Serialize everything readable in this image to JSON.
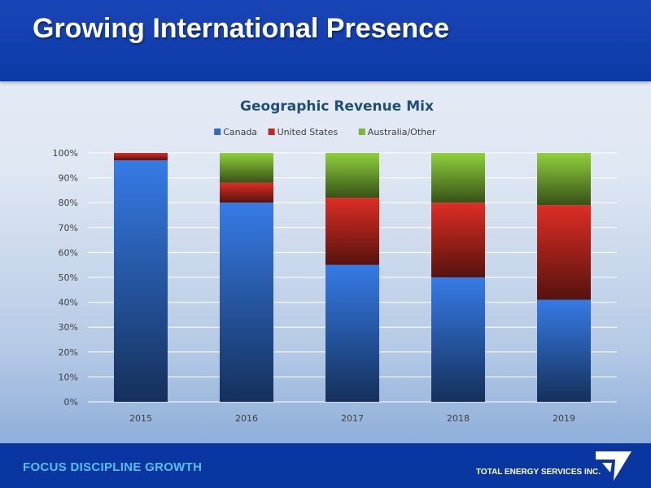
{
  "header": {
    "title": "Growing International Presence"
  },
  "footer": {
    "tagline": "FOCUS  DISCIPLINE  GROWTH",
    "company": "TOTAL ENERGY SERVICES INC.",
    "logo_icon": "total-energy-logo-icon"
  },
  "colors": {
    "header_blue": "#0b3aa6",
    "canada": "#2f6bc8",
    "united_states": "#c0281f",
    "australia_other": "#7db534",
    "tagline": "#4fc3f7"
  },
  "chart_data": {
    "type": "bar",
    "stacked": true,
    "percent": true,
    "title": "Geographic Revenue Mix",
    "xlabel": "",
    "ylabel": "",
    "ylim": [
      0,
      100
    ],
    "yticks": [
      "0%",
      "10%",
      "20%",
      "30%",
      "40%",
      "50%",
      "60%",
      "70%",
      "80%",
      "90%",
      "100%"
    ],
    "grid": true,
    "legend_position": "top",
    "categories": [
      "2015",
      "2016",
      "2017",
      "2018",
      "2019"
    ],
    "series": [
      {
        "name": "Canada",
        "color": "#2f6bc8",
        "values": [
          97,
          80,
          55,
          50,
          41
        ]
      },
      {
        "name": "United States",
        "color": "#c0281f",
        "values": [
          3,
          8,
          27,
          30,
          38
        ]
      },
      {
        "name": "Australia/Other",
        "color": "#7db534",
        "values": [
          0,
          12,
          18,
          20,
          21
        ]
      }
    ]
  }
}
